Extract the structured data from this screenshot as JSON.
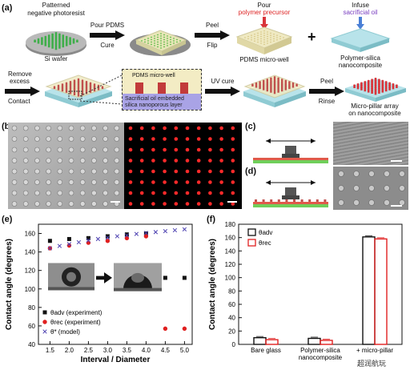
{
  "top": {
    "panel_a": "(a)",
    "labels": {
      "patterned": "Patterned",
      "neg_photoresist": "negative photoresist",
      "si_wafer": "Si wafer",
      "pour_pdms": "Pour PDMS",
      "cure": "Cure",
      "peel1": "Peel",
      "flip": "Flip",
      "pour": "Pour",
      "polymer_precursor": "polymer precursor",
      "pdms_microwell": "PDMS micro-well",
      "infuse": "Infuse",
      "sacrificial_oil": "sacrificial oil",
      "polymer_silica": "Polymer-silica",
      "nanocomposite": "nanocomposite",
      "remove_excess": "Remove",
      "excess": "excess",
      "contact": "Contact",
      "inset_title": "PDMS micro-well",
      "inset_sub1": "Sacrificial oil embedded",
      "inset_sub2": "silica nanoporous layer",
      "uv_cure": "UV cure",
      "peel2": "Peel",
      "rinse": "Rinse",
      "micro_pillar": "Micro-pillar array",
      "on_nanocomposite": "on nanocomposite",
      "plus": "+"
    },
    "colors": {
      "green": "#3fae4a",
      "red": "#d9343a",
      "purple": "#7a3fc0",
      "blue": "#4a7fd6"
    }
  },
  "mid": {
    "panel_b": "(b)",
    "panel_c": "(c)",
    "panel_d": "(d)"
  },
  "watermark": "超润航玩",
  "chart_data": [
    {
      "id": "e",
      "panel": "(e)",
      "type": "scatter",
      "xlabel": "Interval / Diameter",
      "ylabel": "Contact angle (degrees)",
      "xlim": [
        1.2,
        5.2
      ],
      "ylim": [
        40,
        170
      ],
      "xticks": [
        "1.5",
        "2.0",
        "2.5",
        "3.0",
        "3.5",
        "4.0",
        "4.5",
        "5.0"
      ],
      "xtick_values": [
        1.5,
        2.0,
        2.5,
        3.0,
        3.5,
        4.0,
        4.5,
        5.0
      ],
      "yticks": [
        "40",
        "60",
        "80",
        "100",
        "120",
        "140",
        "160"
      ],
      "ytick_values": [
        40,
        60,
        80,
        100,
        120,
        140,
        160
      ],
      "series": [
        {
          "name": "θadv (experiment)",
          "marker": "square",
          "color": "#111111",
          "x": [
            1.5,
            2.0,
            2.5,
            3.0,
            3.5,
            4.0,
            4.5,
            5.0
          ],
          "y": [
            152,
            154,
            155,
            157,
            159,
            160,
            112,
            112
          ]
        },
        {
          "name": "θrec (experiment)",
          "marker": "circle",
          "color": "#e02020",
          "x": [
            1.5,
            2.0,
            2.5,
            3.0,
            3.5,
            4.0,
            4.5,
            5.0
          ],
          "y": [
            144,
            147,
            150,
            152,
            155,
            157,
            57,
            57
          ]
        },
        {
          "name": "θ* (model)",
          "marker": "x",
          "color": "#4b3fb0",
          "x": [
            1.5,
            1.75,
            2.0,
            2.25,
            2.5,
            2.75,
            3.0,
            3.25,
            3.5,
            3.75,
            4.0,
            4.25,
            4.5,
            4.75,
            5.0
          ],
          "y": [
            144,
            146.5,
            148.5,
            150.5,
            152.5,
            154,
            155.5,
            157,
            158,
            159.5,
            160.5,
            161.5,
            162.5,
            163.5,
            164.5
          ]
        }
      ],
      "legend": [
        "θadv (experiment)",
        "θrec (experiment)",
        "θ* (model)"
      ]
    },
    {
      "id": "f",
      "panel": "(f)",
      "type": "bar",
      "ylabel": "Contact angle (degrees)",
      "ylim": [
        0,
        180
      ],
      "yticks": [
        "0",
        "20",
        "40",
        "60",
        "80",
        "100",
        "120",
        "140",
        "160",
        "180"
      ],
      "ytick_values": [
        0,
        20,
        40,
        60,
        80,
        100,
        120,
        140,
        160,
        180
      ],
      "categories": [
        "Bare glass",
        "Polymer-silica\nnanocomposite",
        "+ micro-pillar"
      ],
      "series": [
        {
          "name": "θadv",
          "color": "#111111",
          "values": [
            10,
            9,
            161
          ]
        },
        {
          "name": "θrec",
          "color": "#e02020",
          "values": [
            7,
            6,
            158
          ]
        }
      ],
      "legend": [
        "θadv",
        "θrec"
      ]
    }
  ]
}
